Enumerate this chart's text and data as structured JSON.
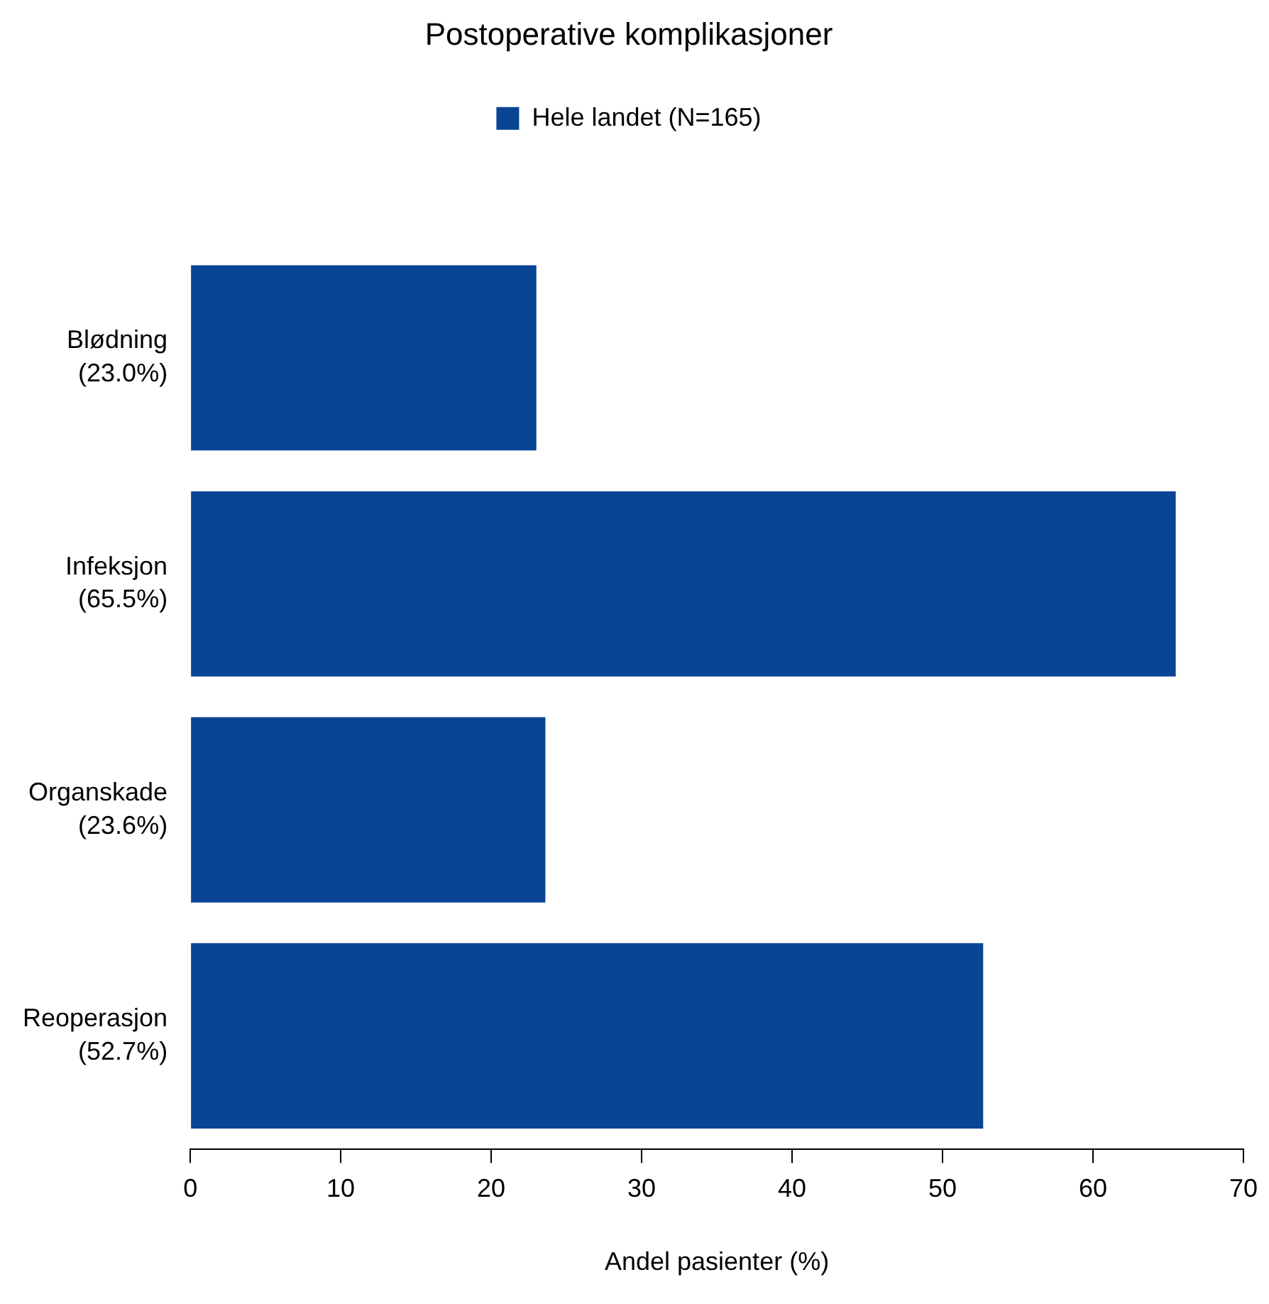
{
  "chart_data": {
    "type": "bar",
    "orientation": "horizontal",
    "title": "Postoperative komplikasjoner",
    "xlabel": "Andel pasienter (%)",
    "categories": [
      "Blødning\n(23.0%)",
      "Infeksjon\n(65.5%)",
      "Organskade\n(23.6%)",
      "Reoperasjon\n(52.7%)"
    ],
    "series": [
      {
        "name": "Hele landet (N=165)",
        "color": "#0a4595",
        "values": [
          23.0,
          65.5,
          23.6,
          52.7
        ]
      }
    ],
    "xlim": [
      0,
      70
    ],
    "xticks": [
      0,
      10,
      20,
      30,
      40,
      50,
      60,
      70
    ],
    "grid": false,
    "legend": "top"
  }
}
